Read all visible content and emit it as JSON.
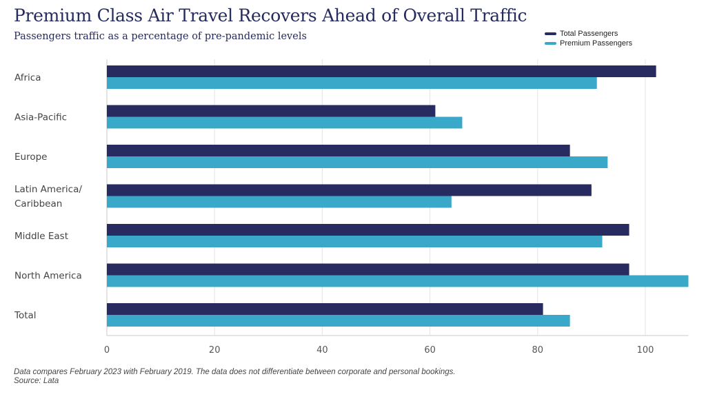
{
  "header": {
    "title": "Premium Class Air Travel Recovers Ahead of Overall Traffic",
    "subtitle": "Passengers traffic as a percentage of pre-pandemic levels"
  },
  "footnote": {
    "line1": "Data compares February 2023 with February 2019. The data does not differentiate between corporate and personal bookings.",
    "line2": "Source: Lata"
  },
  "chart_data": {
    "type": "bar",
    "orientation": "horizontal",
    "title": "Premium Class Air Travel Recovers Ahead of Overall Traffic",
    "subtitle": "Passengers traffic as a percentage of pre-pandemic levels",
    "xlabel": "",
    "ylabel": "",
    "categories": [
      [
        "Africa"
      ],
      [
        "Asia-Pacific"
      ],
      [
        "Europe"
      ],
      [
        "Latin America/",
        "Caribbean"
      ],
      [
        "Middle East"
      ],
      [
        "North America"
      ],
      [
        "Total"
      ]
    ],
    "series": [
      {
        "name": "Total Passengers",
        "color": "#272b60",
        "values": [
          102,
          61,
          86,
          90,
          97,
          97,
          81
        ]
      },
      {
        "name": "Premium Passengers",
        "color": "#3aa8c8",
        "values": [
          91,
          66,
          93,
          64,
          92,
          108,
          86
        ]
      }
    ],
    "xlim": [
      0,
      108
    ],
    "xticks": [
      0,
      20,
      40,
      60,
      80,
      100
    ],
    "grid": true,
    "legend_position": "top-right"
  }
}
